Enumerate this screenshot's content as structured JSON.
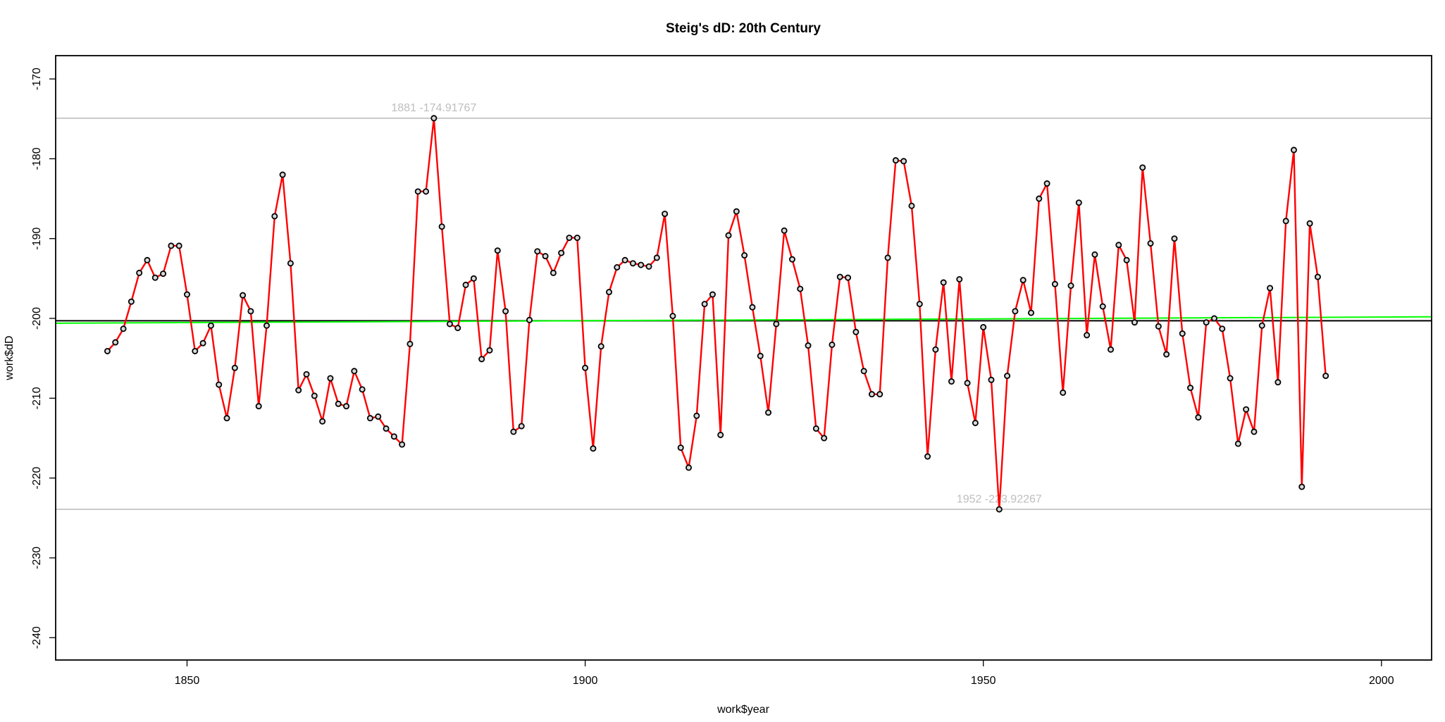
{
  "chart_data": {
    "type": "line",
    "title": "Steig's dD: 20th Century",
    "x_label": "work$year",
    "y_label": "work$dD",
    "xlim": [
      1833.5,
      2006.3
    ],
    "ylim": [
      -242.8,
      -167.08
    ],
    "xticks": [
      1850,
      1900,
      1950,
      2000
    ],
    "yticks": [
      -240,
      -230,
      -220,
      -210,
      -200,
      -190,
      -180,
      -170
    ],
    "grid": false,
    "point_color": "#000000",
    "x": [
      1840,
      1841,
      1842,
      1843,
      1844,
      1845,
      1846,
      1847,
      1848,
      1849,
      1850,
      1851,
      1852,
      1853,
      1854,
      1855,
      1856,
      1857,
      1858,
      1859,
      1860,
      1861,
      1862,
      1863,
      1864,
      1865,
      1866,
      1867,
      1868,
      1869,
      1870,
      1871,
      1872,
      1873,
      1874,
      1875,
      1876,
      1877,
      1878,
      1879,
      1880,
      1881,
      1882,
      1883,
      1884,
      1885,
      1886,
      1887,
      1888,
      1889,
      1890,
      1891,
      1892,
      1893,
      1894,
      1895,
      1896,
      1897,
      1898,
      1899,
      1900,
      1901,
      1902,
      1903,
      1904,
      1905,
      1906,
      1907,
      1908,
      1909,
      1910,
      1911,
      1912,
      1913,
      1914,
      1915,
      1916,
      1917,
      1918,
      1919,
      1920,
      1921,
      1922,
      1923,
      1924,
      1925,
      1926,
      1927,
      1928,
      1929,
      1930,
      1931,
      1932,
      1933,
      1934,
      1935,
      1936,
      1937,
      1938,
      1939,
      1940,
      1941,
      1942,
      1943,
      1944,
      1945,
      1946,
      1947,
      1948,
      1949,
      1950,
      1951,
      1952,
      1953,
      1954,
      1955,
      1956,
      1957,
      1958,
      1959,
      1960,
      1961,
      1962,
      1963,
      1964,
      1965,
      1966,
      1967,
      1968,
      1969,
      1970,
      1971,
      1972,
      1973,
      1974,
      1975,
      1976,
      1977,
      1978,
      1979,
      1980,
      1981,
      1982,
      1983,
      1984,
      1985,
      1986,
      1987,
      1988,
      1989,
      1990,
      1991,
      1992,
      1993
    ],
    "series": [
      {
        "color": "#ff0000",
        "values": [
          -204.1,
          -203.0,
          -201.3,
          -197.9,
          -194.3,
          -192.7,
          -194.9,
          -194.4,
          -190.9,
          -190.9,
          -197.0,
          -204.1,
          -203.1,
          -200.9,
          -208.3,
          -212.5,
          -206.2,
          -197.1,
          -199.1,
          -211.0,
          -200.9,
          -187.2,
          -182.0,
          -193.1,
          -209.0,
          -207.0,
          -209.7,
          -212.9,
          -207.5,
          -210.7,
          -211.0,
          -206.6,
          -208.9,
          -212.5,
          -212.3,
          -213.8,
          -214.8,
          -215.8,
          -203.2,
          -184.1,
          -184.1,
          -174.91767,
          -188.5,
          -200.7,
          -201.2,
          -195.8,
          -195.0,
          -205.1,
          -204.0,
          -191.5,
          -199.1,
          -214.2,
          -213.5,
          -200.2,
          -191.6,
          -192.2,
          -194.3,
          -191.8,
          -189.9,
          -189.9,
          -206.2,
          -216.3,
          -203.5,
          -196.7,
          -193.6,
          -192.7,
          -193.1,
          -193.3,
          -193.5,
          -192.4,
          -186.9,
          -199.7,
          -216.2,
          -218.7,
          -212.2,
          -198.2,
          -197.0,
          -214.6,
          -189.6,
          -186.6,
          -192.1,
          -198.6,
          -204.7,
          -211.8,
          -200.7,
          -189.0,
          -192.6,
          -196.3,
          -203.4,
          -213.8,
          -215.0,
          -203.3,
          -194.8,
          -194.9,
          -201.7,
          -206.6,
          -209.5,
          -209.5,
          -192.4,
          -180.2,
          -180.3,
          -185.9,
          -198.2,
          -217.3,
          -203.9,
          -195.5,
          -207.9,
          -195.1,
          -208.1,
          -213.1,
          -201.1,
          -207.7,
          -223.92267,
          -207.2,
          -199.1,
          -195.2,
          -199.3,
          -185.0,
          -183.1,
          -195.7,
          -209.3,
          -195.9,
          -185.5,
          -202.1,
          -192.0,
          -198.5,
          -203.9,
          -190.8,
          -192.7,
          -200.5,
          -181.1,
          -190.6,
          -201.0,
          -204.5,
          -190.0,
          -201.9,
          -208.7,
          -212.4,
          -200.5,
          -200.0,
          -201.3,
          -207.5,
          -215.7,
          -211.4,
          -214.2,
          -200.9,
          -196.2,
          -208.0,
          -187.8,
          -178.9,
          -221.1,
          -188.1,
          -194.8,
          -207.2
        ]
      }
    ],
    "trend": {
      "color": "#00ff00",
      "x": [
        1833.5,
        2006.3
      ],
      "values": [
        -200.6,
        -199.8
      ]
    },
    "hlines": [
      {
        "value": -174.91767,
        "color": "#bebebe",
        "label": "1881 -174.91767",
        "label_x": 1881
      },
      {
        "value": -223.92267,
        "color": "#bebebe",
        "label": "1952 -223.92267",
        "label_x": 1952
      },
      {
        "value": -200.3,
        "color": "#000000"
      }
    ]
  }
}
